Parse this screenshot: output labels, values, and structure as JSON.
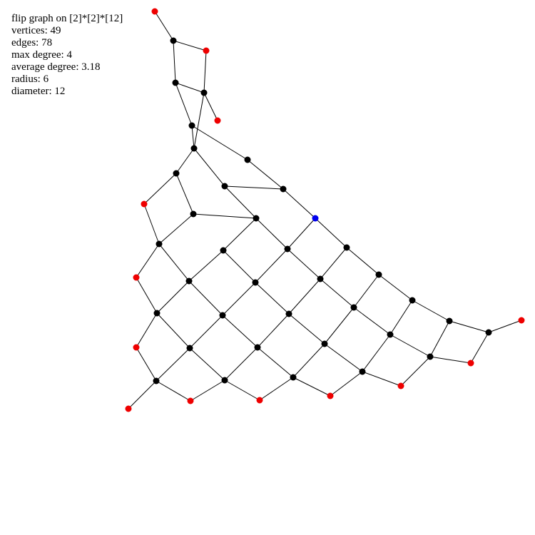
{
  "info": {
    "title": "flip graph on [2]*[2]*[12]",
    "vertices": "vertices: 49",
    "edges": "edges: 78",
    "max_degree": "max degree: 4",
    "average_degree": "average degree: 3.18",
    "radius": "radius: 6",
    "diameter": "diameter: 12"
  },
  "colors": {
    "background": "#ffffff",
    "edge": "#000000",
    "vertex_default": "#000000",
    "vertex_boundary": "#ee0000",
    "vertex_center": "#0000ee"
  }
}
